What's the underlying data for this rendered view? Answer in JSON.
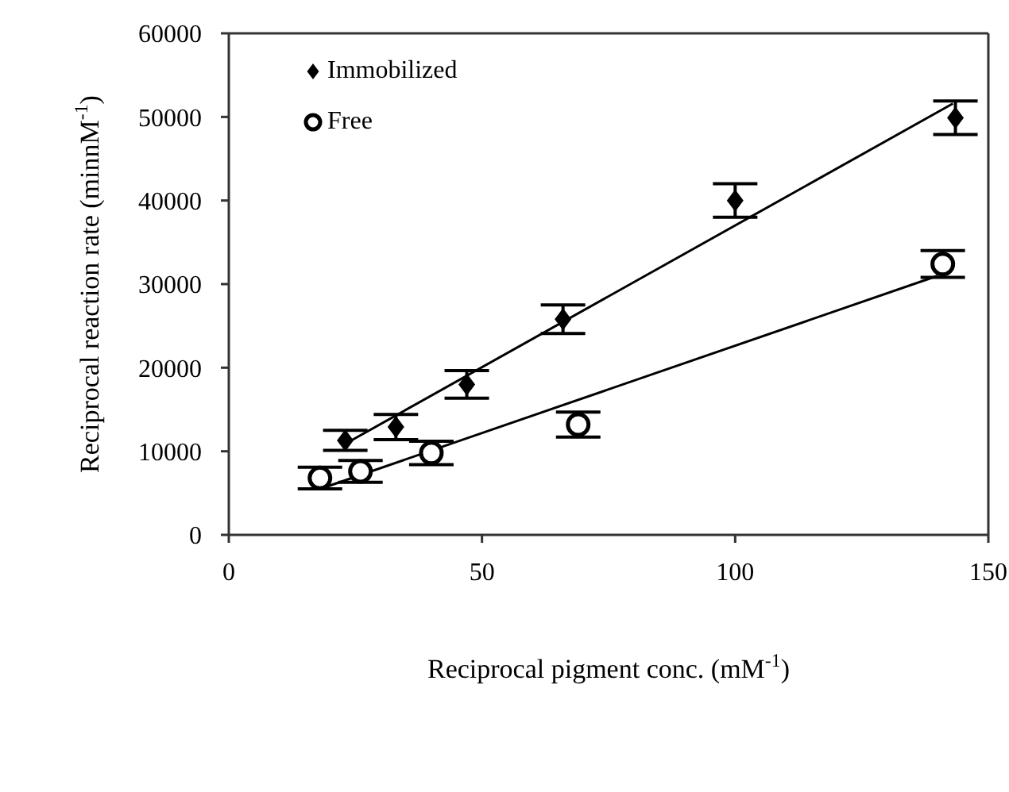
{
  "chart_data": {
    "type": "scatter",
    "xlabel": "Reciprocal pigment conc. (mM$^{-1}$)",
    "ylabel": "Reciprocal reaction rate  (minnM$^{-1}$)",
    "xlim": [
      0,
      150
    ],
    "xticks": [
      0,
      50,
      100,
      150
    ],
    "ylim": [
      0,
      60000
    ],
    "yticks": [
      0,
      10000,
      20000,
      30000,
      40000,
      50000,
      60000
    ],
    "grid": false,
    "legend": "top left",
    "series": [
      {
        "name": "Immobilized",
        "marker": "diamond",
        "color": "#000000",
        "x": [
          23,
          33,
          47,
          66,
          100,
          143.5
        ],
        "values": [
          11300,
          12900,
          18000,
          25800,
          40000,
          49900
        ],
        "errors": [
          1200,
          1500,
          1650,
          1700,
          2000,
          2000
        ]
      },
      {
        "name": "Free",
        "marker": "circle",
        "color": "#000000",
        "x": [
          18,
          26,
          40,
          69,
          141
        ],
        "values": [
          6800,
          7600,
          9800,
          13200,
          32400
        ],
        "errors": [
          1300,
          1300,
          1400,
          1500,
          1600
        ]
      },
      {
        "type": "line",
        "color": "#000000",
        "x": [
          23,
          143
        ],
        "values": [
          10900,
          51600
        ]
      },
      {
        "type": "line",
        "color": "#000000",
        "x": [
          19,
          140
        ],
        "values": [
          5700,
          31000
        ]
      }
    ]
  }
}
